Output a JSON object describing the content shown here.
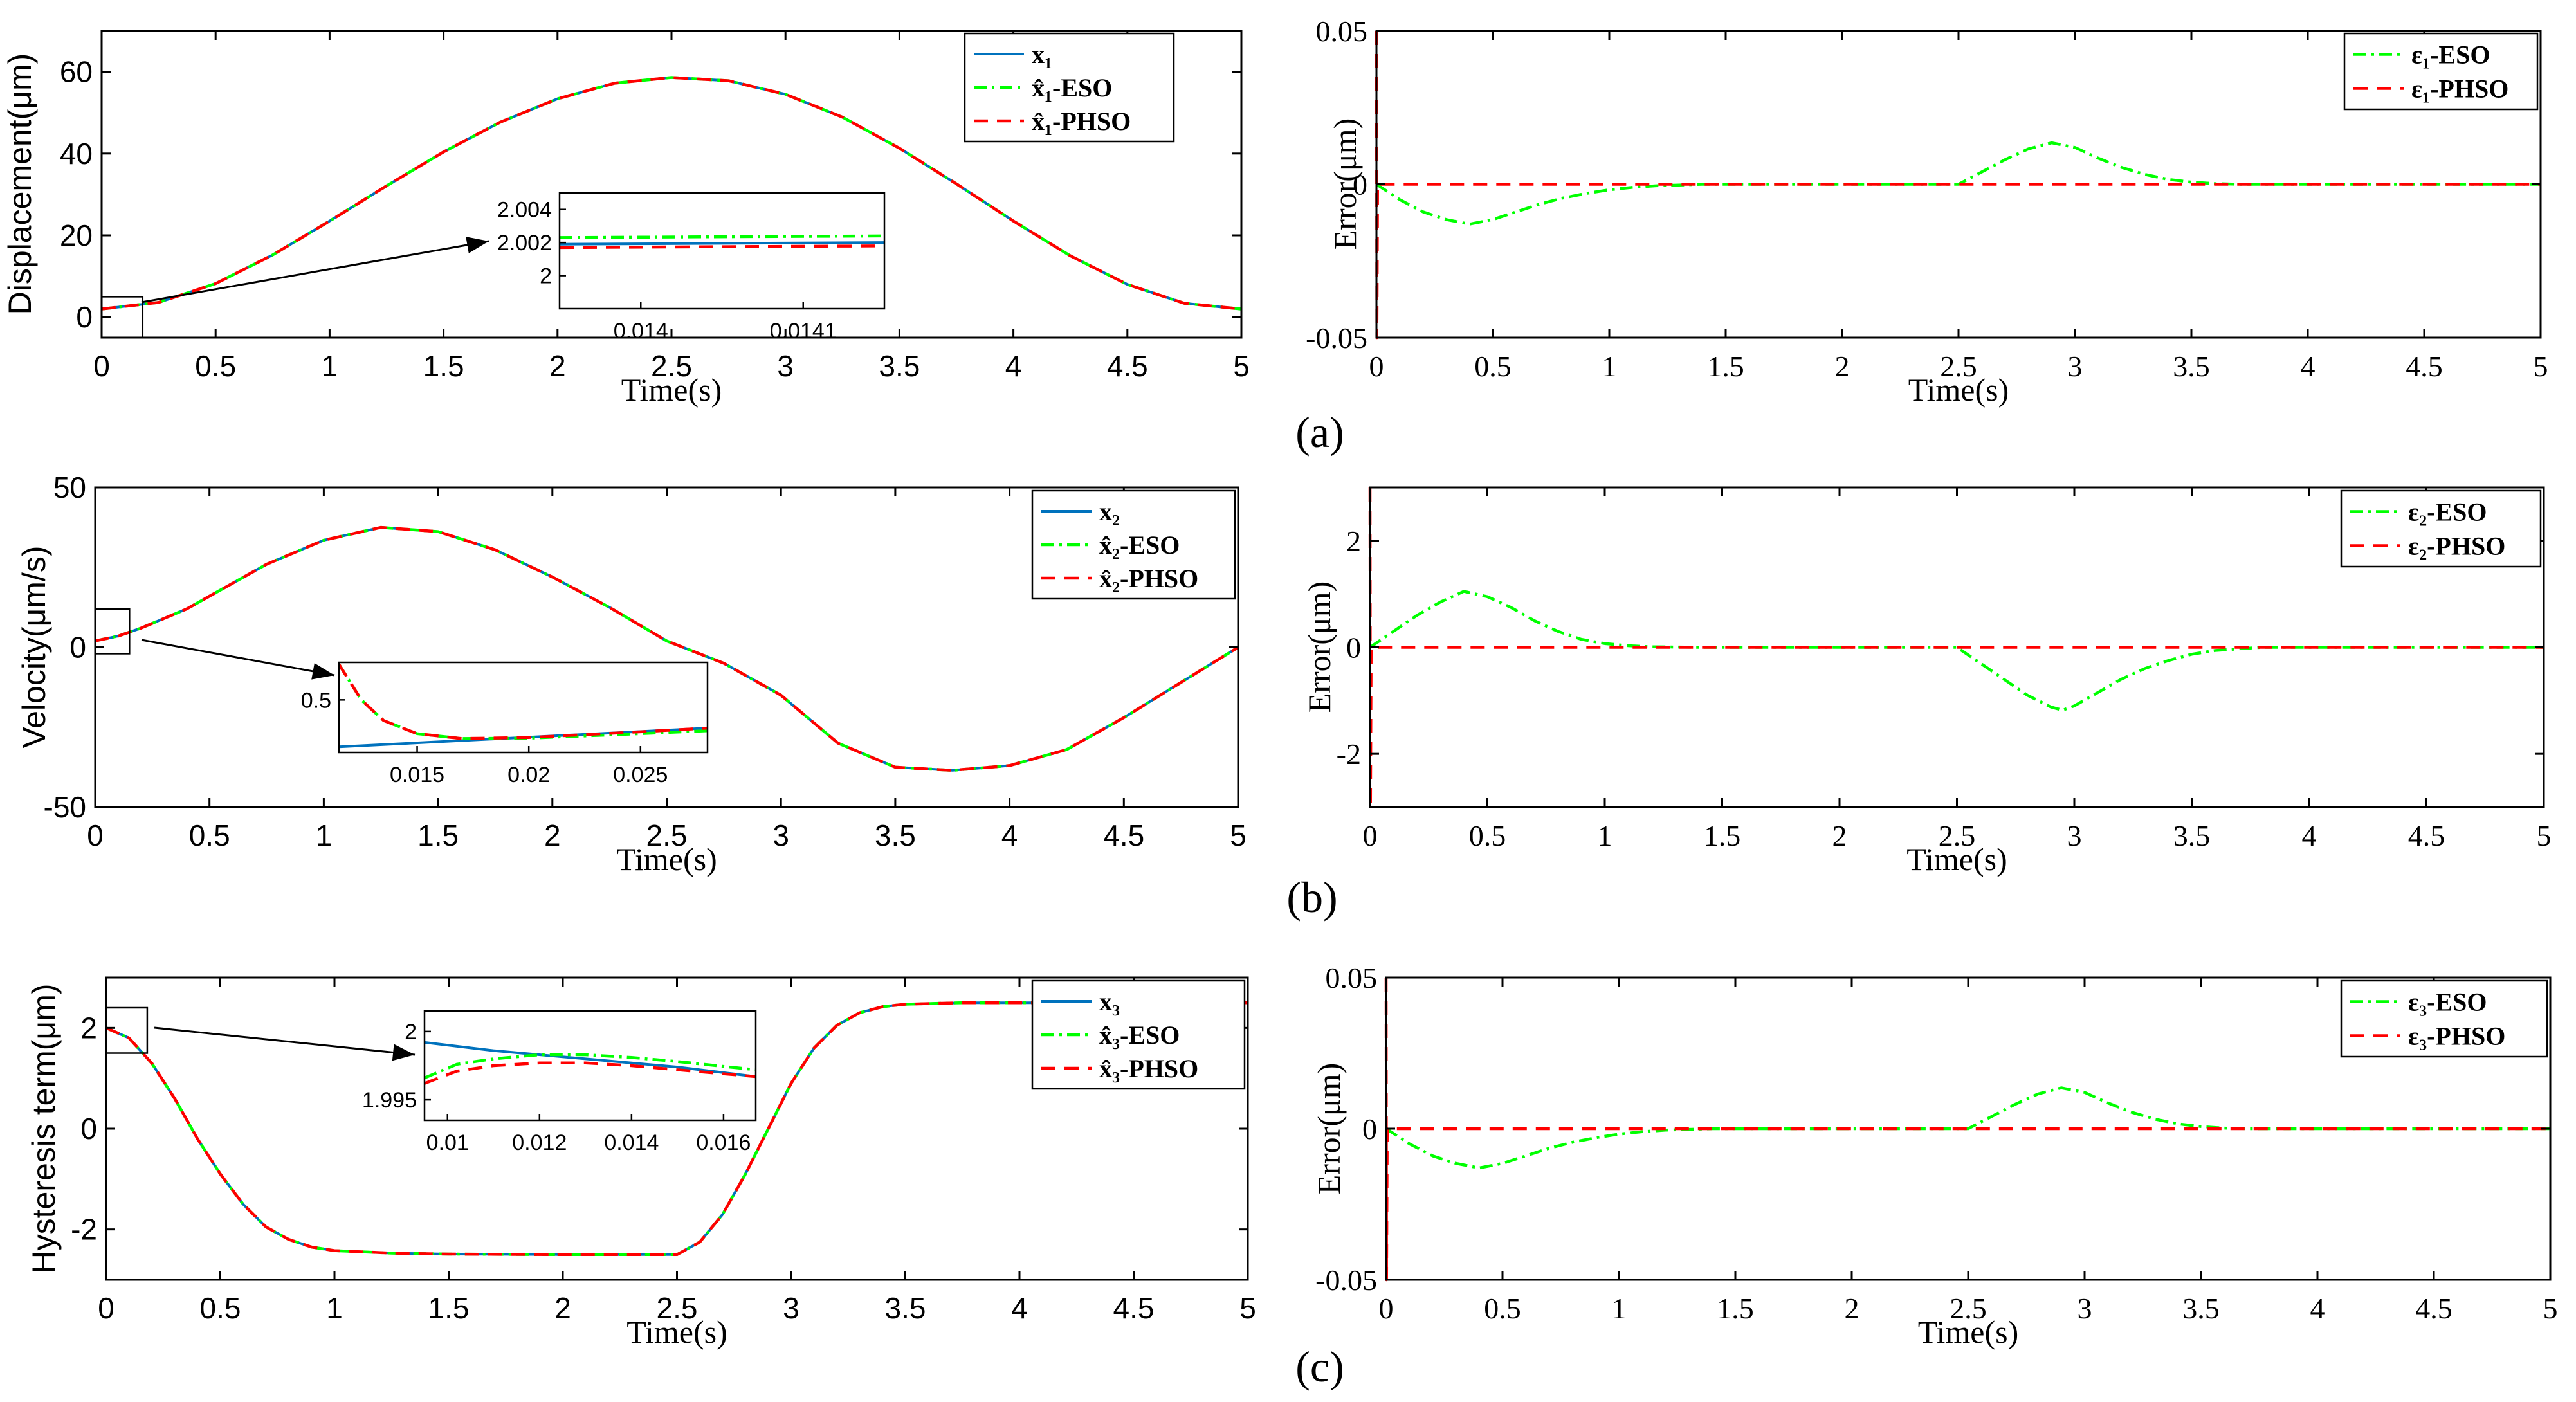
{
  "figure": {
    "panel_labels": [
      "(a)",
      "(b)",
      "(c)"
    ]
  },
  "colors": {
    "true_state": "#0072BD",
    "eso": "#00FF00",
    "phso": "#FF0000",
    "axes": "#000000"
  },
  "chart_data": [
    {
      "id": "a-left",
      "type": "line",
      "xlabel": "Time(s)",
      "ylabel": "Displacement(μm)",
      "xlim": [
        0,
        5
      ],
      "ylim": [
        -5,
        70
      ],
      "xticks": [
        "0",
        "0.5",
        "1",
        "1.5",
        "2",
        "2.5",
        "3",
        "3.5",
        "4",
        "4.5",
        "5"
      ],
      "yticks": [
        "0",
        "20",
        "40",
        "60"
      ],
      "legend_position": "top-right",
      "series": [
        {
          "name": "x₁",
          "style": "solid",
          "color": "#0072BD"
        },
        {
          "name": "x̂₁-ESO",
          "style": "dashdot",
          "color": "#00FF00"
        },
        {
          "name": "x̂₁-PHSO",
          "style": "dashed",
          "color": "#FF0000"
        }
      ],
      "x": [
        0,
        0.25,
        0.5,
        0.75,
        1,
        1.25,
        1.5,
        1.75,
        2,
        2.25,
        2.5,
        2.75,
        3,
        3.25,
        3.5,
        3.75,
        4,
        4.25,
        4.5,
        4.75,
        5
      ],
      "y": [
        2,
        3.6,
        8.2,
        15.2,
        23.5,
        32.1,
        40.4,
        47.7,
        53.4,
        57.2,
        58.6,
        57.8,
        54.5,
        48.9,
        41.3,
        32.6,
        23.5,
        15.0,
        8.0,
        3.4,
        2
      ],
      "inset": {
        "xlim": [
          0.01395,
          0.01415
        ],
        "ylim": [
          1.998,
          2.005
        ],
        "xticks": [
          "0.014",
          "0.0141"
        ],
        "xtick_values": [
          0.014,
          0.0141
        ],
        "yticks": [
          "2",
          "2.002",
          "2.004"
        ],
        "ytick_values": [
          2,
          2.002,
          2.004
        ],
        "series": [
          {
            "x": [
              0.01395,
              0.01415
            ],
            "y": [
              2.0019,
              2.002
            ]
          },
          {
            "x": [
              0.01395,
              0.01415
            ],
            "y": [
              2.0023,
              2.0024
            ]
          },
          {
            "x": [
              0.01395,
              0.01415
            ],
            "y": [
              2.0017,
              2.0018
            ]
          }
        ]
      }
    },
    {
      "id": "a-right",
      "type": "line",
      "xlabel": "Time(s)",
      "ylabel": "Error(μm)",
      "xlim": [
        0,
        5
      ],
      "ylim": [
        -0.05,
        0.05
      ],
      "xticks": [
        "0",
        "0.5",
        "1",
        "1.5",
        "2",
        "2.5",
        "3",
        "3.5",
        "4",
        "4.5",
        "5"
      ],
      "yticks": [
        "-0.05",
        "0",
        "0.05"
      ],
      "legend_position": "top-right",
      "series": [
        {
          "name": "ε₁-ESO",
          "style": "dashdot",
          "color": "#00FF00",
          "x": [
            0,
            0.1,
            0.2,
            0.3,
            0.4,
            0.5,
            0.6,
            0.7,
            0.8,
            0.9,
            1.0,
            1.1,
            1.2,
            1.4,
            2.5,
            2.6,
            2.7,
            2.8,
            2.9,
            3.0,
            3.1,
            3.2,
            3.3,
            3.4,
            3.5,
            3.6,
            3.7,
            5
          ],
          "y": [
            0,
            -0.005,
            -0.009,
            -0.0115,
            -0.013,
            -0.0115,
            -0.009,
            -0.0065,
            -0.0045,
            -0.003,
            -0.0018,
            -0.001,
            -0.0005,
            0,
            0,
            0.004,
            0.008,
            0.0115,
            0.0135,
            0.012,
            0.0085,
            0.0055,
            0.0032,
            0.0016,
            0.0007,
            0.0002,
            0,
            0
          ]
        },
        {
          "name": "ε₁-PHSO",
          "style": "dashed",
          "color": "#FF0000",
          "x": [
            0,
            0.002,
            0.005,
            5
          ],
          "y": [
            0.05,
            -0.05,
            0,
            0
          ]
        }
      ]
    },
    {
      "id": "b-left",
      "type": "line",
      "xlabel": "Time(s)",
      "ylabel": "Velocity(μm/s)",
      "xlim": [
        0,
        5
      ],
      "ylim": [
        -50,
        50
      ],
      "xticks": [
        "0",
        "0.5",
        "1",
        "1.5",
        "2",
        "2.5",
        "3",
        "3.5",
        "4",
        "4.5",
        "5"
      ],
      "yticks": [
        "-50",
        "0",
        "50"
      ],
      "legend_position": "top-right",
      "series": [
        {
          "name": "x₂",
          "style": "solid",
          "color": "#0072BD"
        },
        {
          "name": "x̂₂-ESO",
          "style": "dashdot",
          "color": "#00FF00"
        },
        {
          "name": "x̂₂-PHSO",
          "style": "dashed",
          "color": "#FF0000"
        }
      ],
      "x": [
        0,
        0.1,
        0.2,
        0.3,
        0.4,
        0.5,
        0.75,
        1.0,
        1.25,
        1.5,
        1.75,
        2.0,
        2.25,
        2.5,
        2.75,
        3.0,
        3.25,
        3.5,
        3.75,
        4.0,
        4.25,
        4.5,
        4.75,
        5
      ],
      "y": [
        2,
        3.5,
        6,
        9,
        12,
        16,
        26,
        33.5,
        37.5,
        36.2,
        30.5,
        22,
        12.5,
        2,
        -5,
        -15,
        -30,
        -37.5,
        -38.5,
        -37,
        -32,
        -22,
        -11,
        0
      ],
      "inset": {
        "xlim": [
          0.0115,
          0.028
        ],
        "ylim": [
          0.36,
          0.6
        ],
        "xticks": [
          "0.015",
          "0.02",
          "0.025"
        ],
        "xtick_values": [
          0.015,
          0.02,
          0.025
        ],
        "yticks": [
          "0.5"
        ],
        "ytick_values": [
          0.5
        ],
        "series": [
          {
            "x": [
              0.0115,
              0.028
            ],
            "y": [
              0.375,
              0.425
            ]
          },
          {
            "x": [
              0.0115,
              0.0125,
              0.0135,
              0.015,
              0.017,
              0.02,
              0.025,
              0.028
            ],
            "y": [
              0.595,
              0.5,
              0.445,
              0.41,
              0.397,
              0.398,
              0.41,
              0.418
            ]
          },
          {
            "x": [
              0.0115,
              0.0125,
              0.0135,
              0.015,
              0.017,
              0.02,
              0.025,
              0.028
            ],
            "y": [
              0.595,
              0.5,
              0.445,
              0.41,
              0.397,
              0.4,
              0.415,
              0.425
            ]
          }
        ]
      }
    },
    {
      "id": "b-right",
      "type": "line",
      "xlabel": "Time(s)",
      "ylabel": "Error(μm)",
      "xlim": [
        0,
        5
      ],
      "ylim": [
        -3,
        3
      ],
      "xticks": [
        "0",
        "0.5",
        "1",
        "1.5",
        "2",
        "2.5",
        "3",
        "3.5",
        "4",
        "4.5",
        "5"
      ],
      "yticks": [
        "-2",
        "0",
        "2"
      ],
      "legend_position": "top-right",
      "series": [
        {
          "name": "ε₂-ESO",
          "style": "dashdot",
          "color": "#00FF00",
          "x": [
            0,
            0.1,
            0.2,
            0.3,
            0.4,
            0.5,
            0.6,
            0.7,
            0.8,
            0.9,
            1.0,
            1.1,
            1.2,
            1.4,
            2.5,
            2.6,
            2.7,
            2.8,
            2.9,
            2.95,
            3.0,
            3.1,
            3.2,
            3.3,
            3.4,
            3.5,
            3.6,
            3.8,
            5
          ],
          "y": [
            0,
            0.3,
            0.6,
            0.85,
            1.05,
            0.95,
            0.75,
            0.5,
            0.3,
            0.15,
            0.07,
            0.03,
            0.01,
            0,
            0,
            -0.3,
            -0.6,
            -0.9,
            -1.12,
            -1.18,
            -1.1,
            -0.85,
            -0.6,
            -0.4,
            -0.25,
            -0.13,
            -0.06,
            0,
            0
          ]
        },
        {
          "name": "ε₂-PHSO",
          "style": "dashed",
          "color": "#FF0000",
          "x": [
            0,
            0.002,
            0.005,
            5
          ],
          "y": [
            3,
            -3,
            0,
            0
          ]
        }
      ]
    },
    {
      "id": "c-left",
      "type": "line",
      "xlabel": "Time(s)",
      "ylabel": "Hysteresis term(μm)",
      "xlim": [
        0,
        5
      ],
      "ylim": [
        -3,
        3
      ],
      "xticks": [
        "0",
        "0.5",
        "1",
        "1.5",
        "2",
        "2.5",
        "3",
        "3.5",
        "4",
        "4.5",
        "5"
      ],
      "yticks": [
        "-2",
        "0",
        "2"
      ],
      "legend_position": "top-right",
      "series": [
        {
          "name": "x₃",
          "style": "solid",
          "color": "#0072BD"
        },
        {
          "name": "x̂₃-ESO",
          "style": "dashdot",
          "color": "#00FF00"
        },
        {
          "name": "x̂₃-PHSO",
          "style": "dashed",
          "color": "#FF0000"
        }
      ],
      "x": [
        0,
        0.1,
        0.2,
        0.3,
        0.4,
        0.5,
        0.6,
        0.7,
        0.8,
        0.9,
        1.0,
        1.25,
        1.5,
        2.0,
        2.5,
        2.6,
        2.7,
        2.8,
        2.9,
        3.0,
        3.1,
        3.2,
        3.3,
        3.4,
        3.5,
        3.75,
        4.0,
        4.5,
        5
      ],
      "y": [
        2,
        1.8,
        1.3,
        0.6,
        -0.2,
        -0.9,
        -1.5,
        -1.95,
        -2.2,
        -2.35,
        -2.42,
        -2.47,
        -2.49,
        -2.5,
        -2.5,
        -2.25,
        -1.7,
        -0.9,
        0,
        0.9,
        1.6,
        2.05,
        2.3,
        2.42,
        2.47,
        2.5,
        2.5,
        2.5,
        2.5
      ],
      "inset": {
        "xlim": [
          0.0095,
          0.0167
        ],
        "ylim": [
          1.9935,
          2.0015
        ],
        "xticks": [
          "0.01",
          "0.012",
          "0.014",
          "0.016"
        ],
        "xtick_values": [
          0.01,
          0.012,
          0.014,
          0.016
        ],
        "yticks": [
          "1.995",
          "2"
        ],
        "ytick_values": [
          1.995,
          2
        ],
        "series": [
          {
            "x": [
              0.0095,
              0.011,
              0.013,
              0.015,
              0.0167
            ],
            "y": [
              1.9992,
              1.9986,
              1.998,
              1.9974,
              1.9967
            ]
          },
          {
            "x": [
              0.0095,
              0.0102,
              0.011,
              0.012,
              0.013,
              0.014,
              0.015,
              0.0167
            ],
            "y": [
              1.9966,
              1.9976,
              1.998,
              1.9983,
              1.9983,
              1.9981,
              1.9978,
              1.9972
            ]
          },
          {
            "x": [
              0.0095,
              0.0102,
              0.011,
              0.012,
              0.013,
              0.014,
              0.015,
              0.0167
            ],
            "y": [
              1.9962,
              1.9971,
              1.9975,
              1.9977,
              1.9977,
              1.9975,
              1.9972,
              1.9967
            ]
          }
        ]
      }
    },
    {
      "id": "c-right",
      "type": "line",
      "xlabel": "Time(s)",
      "ylabel": "Error(μm)",
      "xlim": [
        0,
        5
      ],
      "ylim": [
        -0.05,
        0.05
      ],
      "xticks": [
        "0",
        "0.5",
        "1",
        "1.5",
        "2",
        "2.5",
        "3",
        "3.5",
        "4",
        "4.5",
        "5"
      ],
      "yticks": [
        "-0.05",
        "0",
        "0.05"
      ],
      "legend_position": "top-right",
      "series": [
        {
          "name": "ε₃-ESO",
          "style": "dashdot",
          "color": "#00FF00",
          "x": [
            0,
            0.1,
            0.2,
            0.3,
            0.4,
            0.5,
            0.6,
            0.7,
            0.8,
            0.9,
            1.0,
            1.1,
            1.2,
            1.4,
            2.5,
            2.6,
            2.7,
            2.8,
            2.9,
            3.0,
            3.1,
            3.2,
            3.3,
            3.4,
            3.5,
            3.6,
            3.7,
            5
          ],
          "y": [
            0,
            -0.005,
            -0.009,
            -0.0115,
            -0.013,
            -0.0115,
            -0.009,
            -0.0065,
            -0.0045,
            -0.003,
            -0.0018,
            -0.001,
            -0.0005,
            0,
            0,
            0.004,
            0.008,
            0.0115,
            0.0135,
            0.012,
            0.0085,
            0.0055,
            0.0032,
            0.0016,
            0.0007,
            0.0002,
            0,
            0
          ]
        },
        {
          "name": "ε₃-PHSO",
          "style": "dashed",
          "color": "#FF0000",
          "x": [
            0,
            0.002,
            0.005,
            5
          ],
          "y": [
            0.05,
            -0.05,
            0,
            0
          ]
        }
      ]
    }
  ]
}
